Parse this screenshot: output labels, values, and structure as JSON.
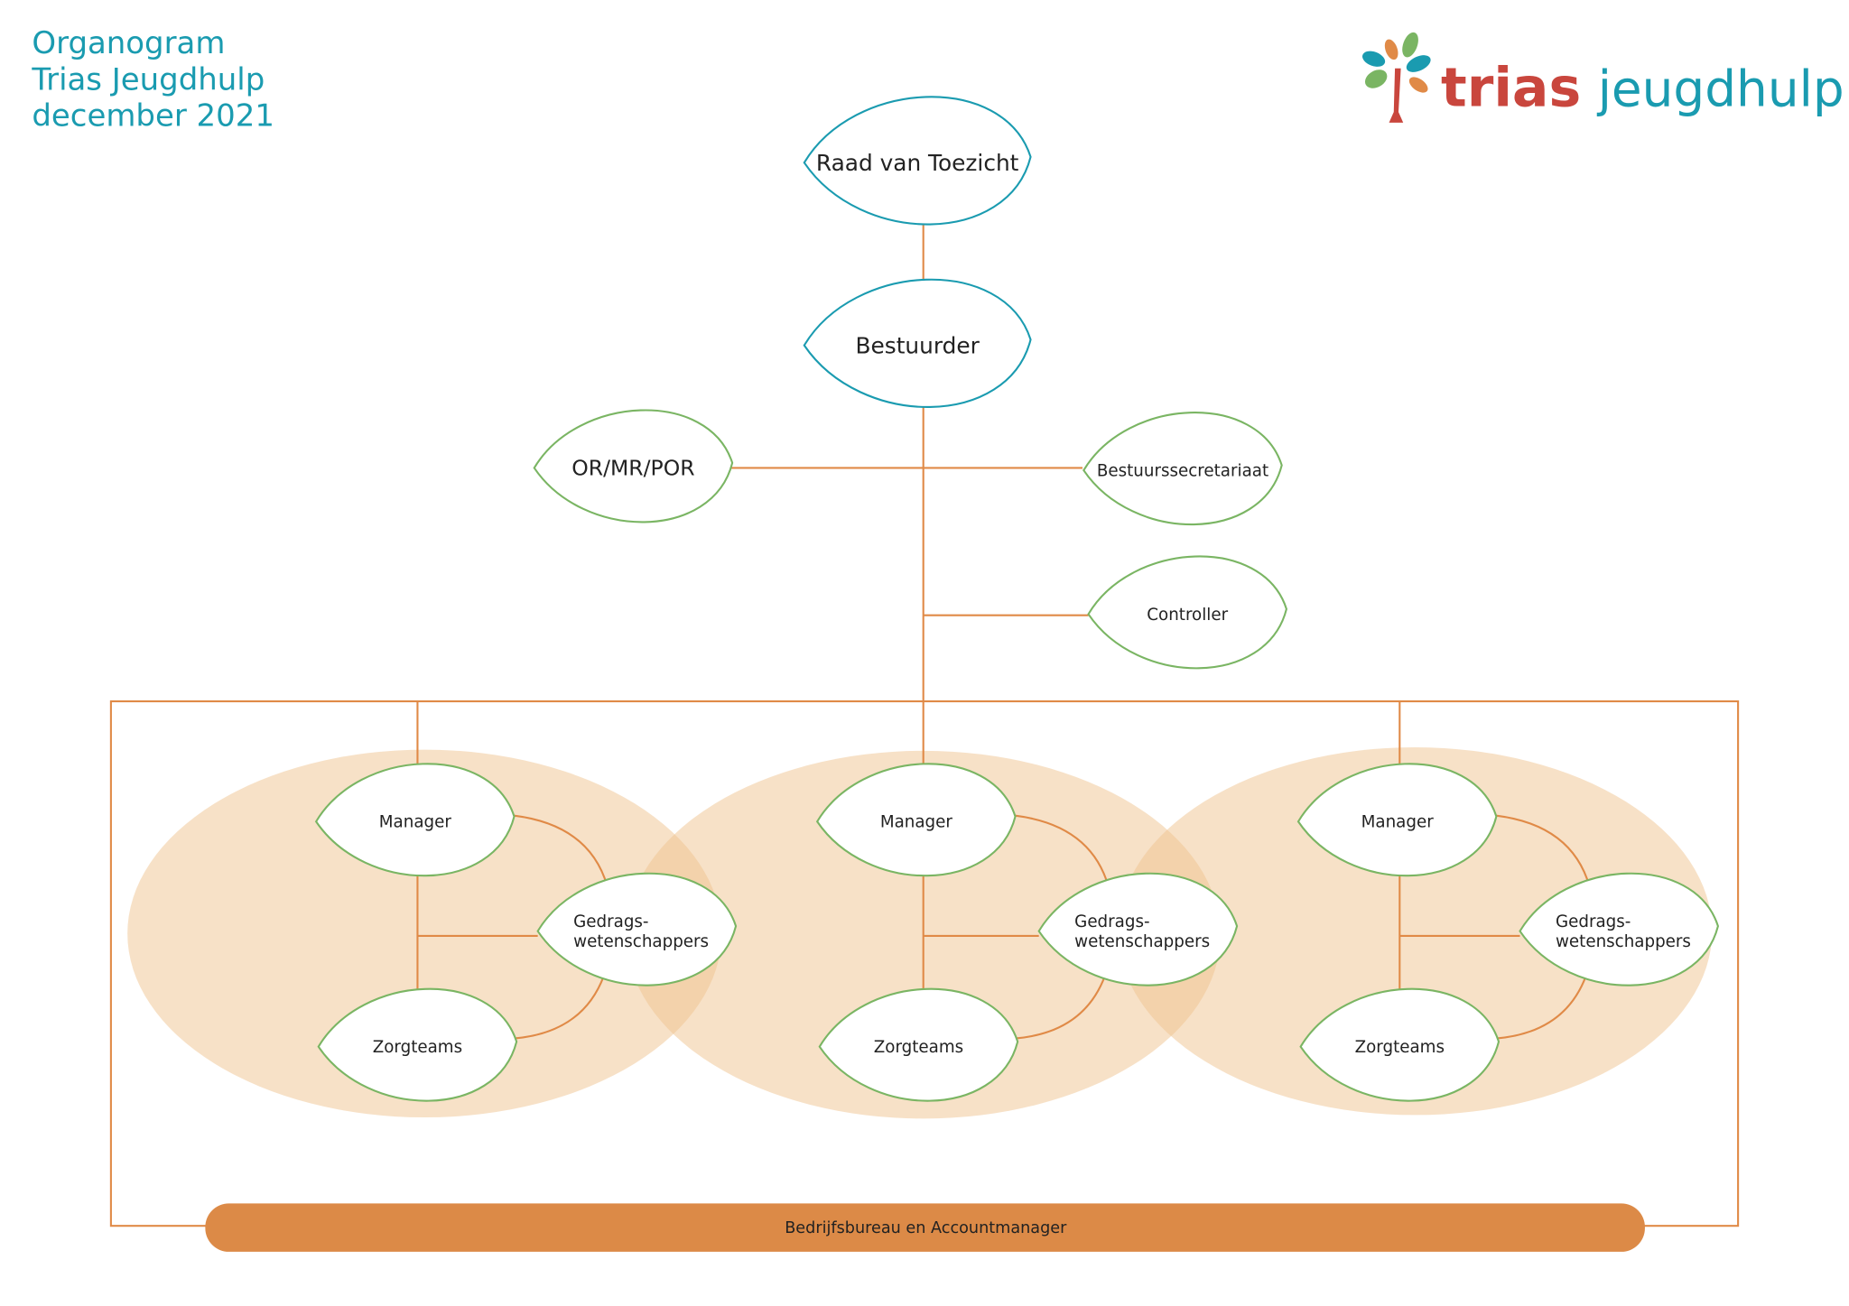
{
  "title": {
    "lines": [
      "Organogram",
      "Trias Jeugdhulp",
      "december 2021"
    ]
  },
  "logo": {
    "word1": "trias",
    "word2": "jeugdhulp",
    "icon": "tree-logo-icon"
  },
  "colors": {
    "teal": "#1a9bb0",
    "green": "#7ab563",
    "orange": "#e08a47",
    "bar": "#dc8a47",
    "bubble": "#f0c48f",
    "red": "#c9463d"
  },
  "top_nodes": [
    {
      "label": "Raad van Toezicht",
      "style": "blue"
    },
    {
      "label": "Bestuurder",
      "style": "blue"
    },
    {
      "label": "OR/MR/POR",
      "style": "green"
    },
    {
      "label": "Bestuurssecretariaat",
      "style": "green"
    },
    {
      "label": "Controller",
      "style": "green"
    }
  ],
  "teams": [
    {
      "manager": "Manager",
      "experts": [
        "Gedrags-",
        "wetenschappers"
      ],
      "care": "Zorgteams"
    },
    {
      "manager": "Manager",
      "experts": [
        "Gedrags-",
        "wetenschappers"
      ],
      "care": "Zorgteams"
    },
    {
      "manager": "Manager",
      "experts": [
        "Gedrags-",
        "wetenschappers"
      ],
      "care": "Zorgteams"
    }
  ],
  "bar": {
    "label": "Bedrijfsbureau en Accountmanager"
  }
}
